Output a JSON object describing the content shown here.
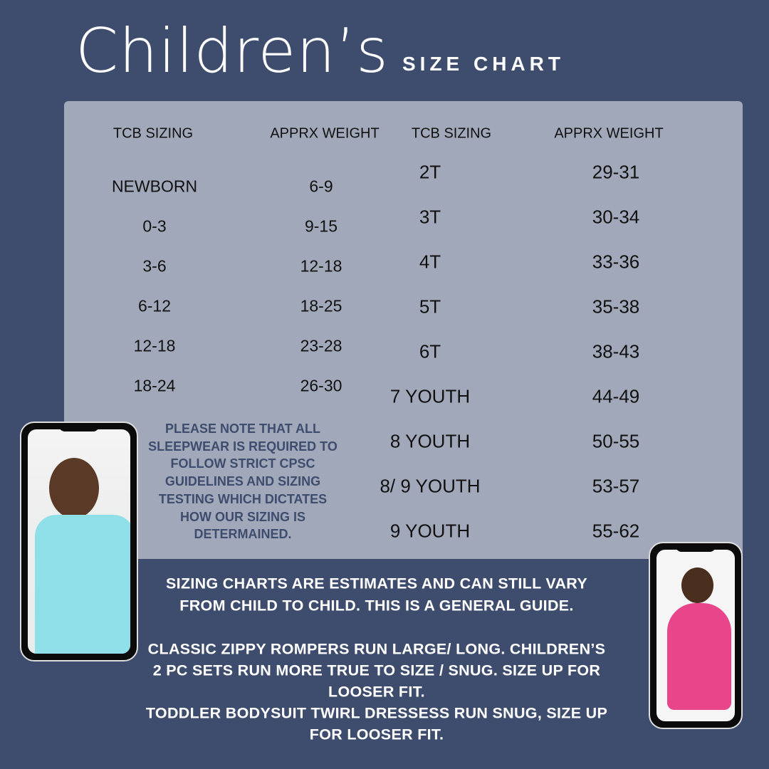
{
  "header": {
    "title": "Children’s",
    "subtitle": "SIZE CHART"
  },
  "table": {
    "headers": [
      "TCB SIZING",
      "APPRX WEIGHT",
      "TCB SIZING",
      "APPRX WEIGHT"
    ],
    "left_rows": [
      [
        "NEWBORN",
        "6-9"
      ],
      [
        "0-3",
        "9-15"
      ],
      [
        "3-6",
        "12-18"
      ],
      [
        "6-12",
        "18-25"
      ],
      [
        "12-18",
        "23-28"
      ],
      [
        "18-24",
        "26-30"
      ]
    ],
    "right_rows": [
      [
        "2T",
        "29-31"
      ],
      [
        "3T",
        "30-34"
      ],
      [
        "4T",
        "33-36"
      ],
      [
        "5T",
        "35-38"
      ],
      [
        "6T",
        "38-43"
      ],
      [
        "7 YOUTH",
        "44-49"
      ],
      [
        "8 YOUTH",
        "50-55"
      ],
      [
        "8/ 9 YOUTH",
        "53-57"
      ],
      [
        "9 YOUTH",
        "55-62"
      ]
    ]
  },
  "note": "PLEASE NOTE THAT ALL SLEEPWEAR IS REQUIRED TO FOLLOW STRICT CPSC GUIDELINES AND SIZING TESTING WHICH DICTATES HOW OUR SIZING IS DETERMAINED.",
  "footer_lines": [
    "SIZING CHARTS ARE ESTIMATES AND CAN STILL VARY",
    "FROM CHILD TO CHILD. THIS IS A GENERAL GUIDE.",
    "CLASSIC ZIPPY ROMPERS RUN LARGE/ LONG. CHILDREN’S",
    "2 PC SETS RUN MORE TRUE TO SIZE / SNUG. SIZE UP FOR",
    "LOOSER FIT.",
    "TODDLER BODYSUIT TWIRL DRESSESS RUN SNUG, SIZE UP",
    "FOR LOOSER FIT."
  ],
  "colors": {
    "background": "#3e4c6d",
    "panel": "#a1a8b9",
    "note_text": "#3e4c6d"
  }
}
